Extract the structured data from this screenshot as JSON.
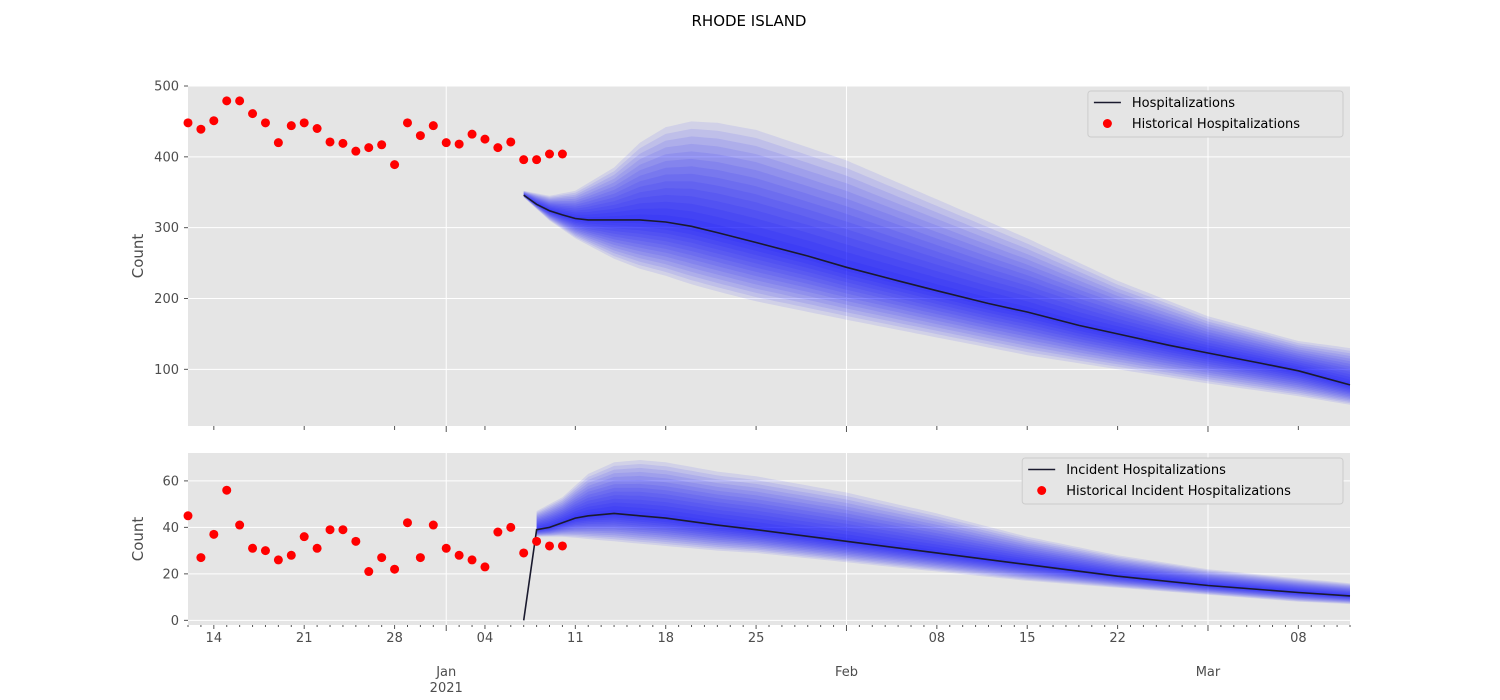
{
  "figure": {
    "title": "RHODE ISLAND"
  },
  "colors": {
    "panel_bg": "#e5e5e5",
    "grid": "#ffffff",
    "historical": "#ff0000",
    "median": "#1a1a2e",
    "band": "#0000ff"
  },
  "chart_data": [
    {
      "type": "line",
      "ylabel": "Count",
      "ylim": [
        20,
        500
      ],
      "yticks": [
        100,
        200,
        300,
        400,
        500
      ],
      "xlim": [
        "2020-12-12",
        "2021-03-12"
      ],
      "grid": true,
      "legend_position": "top-right",
      "legend": [
        "Hospitalizations",
        "Historical Hospitalizations"
      ],
      "historical": {
        "name": "Historical Hospitalizations",
        "x": [
          "2020-12-12",
          "2020-12-13",
          "2020-12-14",
          "2020-12-15",
          "2020-12-16",
          "2020-12-17",
          "2020-12-18",
          "2020-12-19",
          "2020-12-20",
          "2020-12-21",
          "2020-12-22",
          "2020-12-23",
          "2020-12-24",
          "2020-12-25",
          "2020-12-26",
          "2020-12-27",
          "2020-12-28",
          "2020-12-29",
          "2020-12-30",
          "2020-12-31",
          "2021-01-01",
          "2021-01-02",
          "2021-01-03",
          "2021-01-04",
          "2021-01-05",
          "2021-01-06",
          "2021-01-07",
          "2021-01-08",
          "2021-01-09",
          "2021-01-10"
        ],
        "y": [
          448,
          439,
          451,
          479,
          479,
          461,
          448,
          420,
          444,
          448,
          440,
          421,
          419,
          408,
          413,
          417,
          389,
          448,
          430,
          444,
          420,
          418,
          432,
          425,
          413,
          421,
          396,
          396,
          404,
          404
        ]
      },
      "median": {
        "name": "Hospitalizations",
        "x": [
          "2021-01-07",
          "2021-01-08",
          "2021-01-09",
          "2021-01-10",
          "2021-01-11",
          "2021-01-12",
          "2021-01-14",
          "2021-01-16",
          "2021-01-18",
          "2021-01-20",
          "2021-01-22",
          "2021-01-25",
          "2021-01-29",
          "2021-02-01",
          "2021-02-05",
          "2021-02-08",
          "2021-02-12",
          "2021-02-15",
          "2021-02-19",
          "2021-02-22",
          "2021-02-26",
          "2021-03-01",
          "2021-03-05",
          "2021-03-08",
          "2021-03-12"
        ],
        "y": [
          346,
          333,
          324,
          318,
          313,
          311,
          311,
          311,
          308,
          302,
          293,
          279,
          260,
          244,
          225,
          211,
          193,
          181,
          162,
          150,
          134,
          123,
          109,
          98,
          78
        ]
      },
      "bands": {
        "x": [
          "2021-01-07",
          "2021-01-09",
          "2021-01-11",
          "2021-01-14",
          "2021-01-16",
          "2021-01-18",
          "2021-01-20",
          "2021-01-22",
          "2021-01-25",
          "2021-02-01",
          "2021-02-08",
          "2021-02-15",
          "2021-02-22",
          "2021-03-01",
          "2021-03-08",
          "2021-03-12"
        ],
        "outer_upper": [
          352,
          345,
          352,
          385,
          420,
          442,
          450,
          448,
          438,
          395,
          340,
          285,
          225,
          175,
          140,
          130
        ],
        "outer_lower": [
          343,
          310,
          285,
          256,
          242,
          232,
          220,
          210,
          196,
          170,
          145,
          120,
          100,
          80,
          62,
          50
        ]
      }
    },
    {
      "type": "line",
      "ylabel": "Count",
      "ylim": [
        -2,
        72
      ],
      "yticks": [
        0,
        20,
        40,
        60
      ],
      "xlim": [
        "2020-12-12",
        "2021-03-12"
      ],
      "grid": true,
      "legend_position": "top-right",
      "legend": [
        "Incident Hospitalizations",
        "Historical Incident Hospitalizations"
      ],
      "xticks_minor_labels": [
        "14",
        "21",
        "28",
        "04",
        "11",
        "18",
        "25",
        "08",
        "15",
        "22",
        "08"
      ],
      "xticks_major_labels": [
        "Jan\n2021",
        "Feb",
        "Mar"
      ],
      "historical": {
        "name": "Historical Incident Hospitalizations",
        "x": [
          "2020-12-12",
          "2020-12-13",
          "2020-12-14",
          "2020-12-15",
          "2020-12-16",
          "2020-12-17",
          "2020-12-18",
          "2020-12-19",
          "2020-12-20",
          "2020-12-21",
          "2020-12-22",
          "2020-12-23",
          "2020-12-24",
          "2020-12-25",
          "2020-12-26",
          "2020-12-27",
          "2020-12-28",
          "2020-12-29",
          "2020-12-30",
          "2020-12-31",
          "2021-01-01",
          "2021-01-02",
          "2021-01-03",
          "2021-01-04",
          "2021-01-05",
          "2021-01-06",
          "2021-01-07",
          "2021-01-08",
          "2021-01-09",
          "2021-01-10"
        ],
        "y": [
          45,
          27,
          37,
          56,
          41,
          31,
          30,
          26,
          28,
          36,
          31,
          39,
          39,
          34,
          21,
          27,
          22,
          42,
          27,
          41,
          31,
          28,
          26,
          23,
          38,
          40,
          29,
          34,
          32,
          32
        ]
      },
      "median": {
        "name": "Incident Hospitalizations",
        "x": [
          "2021-01-07",
          "2021-01-08",
          "2021-01-09",
          "2021-01-10",
          "2021-01-11",
          "2021-01-12",
          "2021-01-14",
          "2021-01-16",
          "2021-01-18",
          "2021-01-22",
          "2021-01-25",
          "2021-02-01",
          "2021-02-08",
          "2021-02-15",
          "2021-02-22",
          "2021-03-01",
          "2021-03-08",
          "2021-03-12"
        ],
        "y": [
          0,
          39,
          40,
          42,
          44,
          45,
          46,
          45,
          44,
          41,
          39,
          34,
          29,
          24,
          19,
          15,
          12,
          10.5
        ]
      },
      "bands": {
        "x": [
          "2021-01-08",
          "2021-01-10",
          "2021-01-12",
          "2021-01-14",
          "2021-01-16",
          "2021-01-18",
          "2021-01-22",
          "2021-01-25",
          "2021-02-01",
          "2021-02-08",
          "2021-02-15",
          "2021-02-22",
          "2021-03-01",
          "2021-03-08",
          "2021-03-12"
        ],
        "outer_upper": [
          47,
          53,
          63,
          68,
          69,
          68,
          64,
          62,
          55,
          46,
          36,
          28,
          22,
          18,
          16
        ],
        "outer_lower": [
          36,
          36,
          35,
          34,
          33,
          32,
          30,
          29,
          25,
          21,
          17,
          14,
          11,
          8,
          7
        ]
      }
    }
  ]
}
